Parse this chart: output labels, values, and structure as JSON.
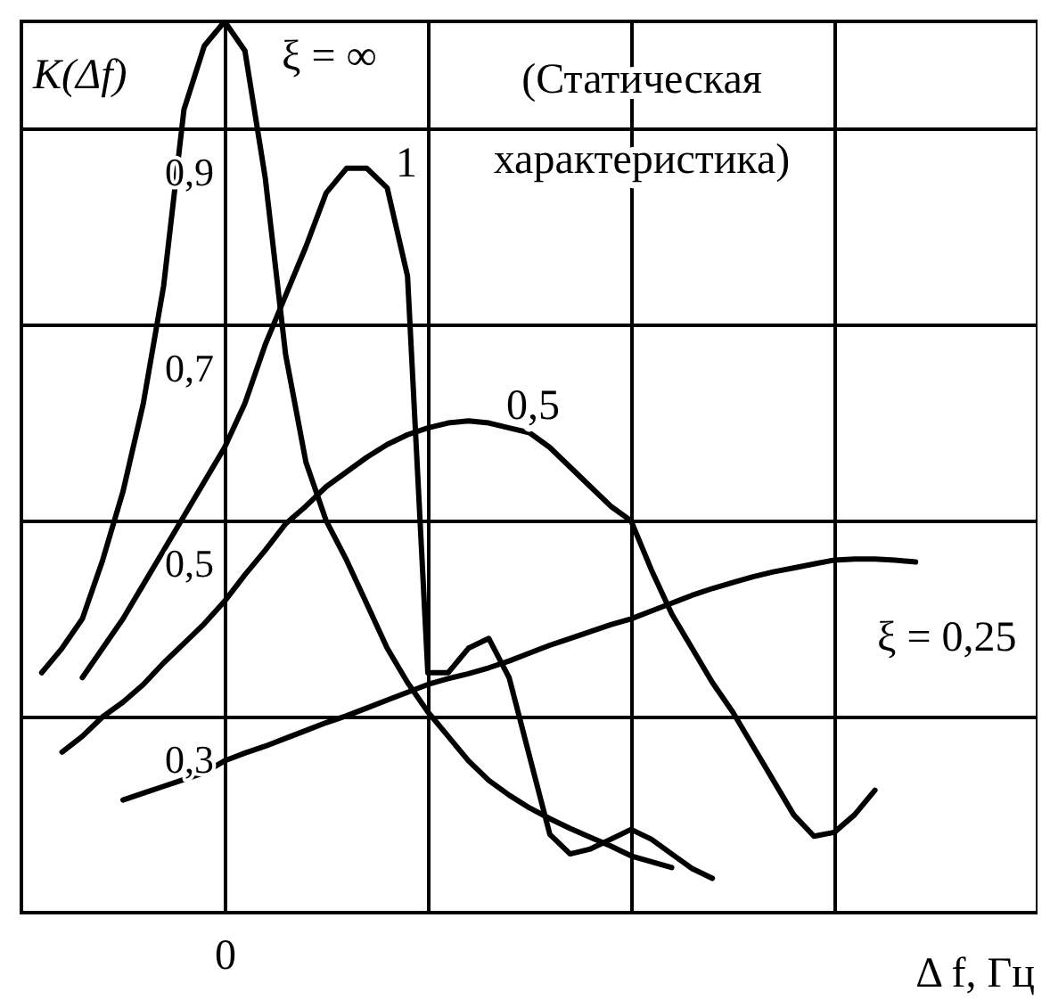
{
  "chart_data": {
    "type": "line",
    "xlabel": "Δ f, Гц",
    "ylabel": "K(Δf)",
    "annotations": [
      "(Статическая характеристика)"
    ],
    "categories": [
      null,
      null,
      null,
      null,
      null,
      null,
      null,
      null,
      null,
      null,
      "0",
      null,
      null,
      null,
      null,
      null,
      null,
      null,
      null,
      null,
      null,
      null,
      null,
      null,
      null,
      null,
      null,
      null,
      null,
      null,
      null,
      null,
      null,
      null,
      null,
      null,
      null,
      null,
      null,
      null,
      null,
      null,
      null,
      null,
      null,
      null,
      null,
      null,
      null,
      null,
      null
    ],
    "ylim": [
      0.1,
      1.01
    ],
    "yticks": [
      {
        "value": 0.3,
        "label": "0,3"
      },
      {
        "value": 0.5,
        "label": "0,5"
      },
      {
        "value": 0.7,
        "label": "0,7"
      },
      {
        "value": 0.9,
        "label": "0,9"
      }
    ],
    "grid": true,
    "legend": false,
    "line_style": "solid",
    "series": [
      {
        "name": "ξ = ∞",
        "color": "#000000",
        "values": [
          null,
          0.345,
          0.37,
          0.4,
          0.46,
          0.53,
          0.62,
          0.74,
          0.92,
          0.985,
          1.01,
          0.98,
          0.85,
          0.67,
          0.56,
          0.5,
          0.46,
          0.415,
          0.37,
          0.335,
          0.305,
          0.28,
          0.255,
          0.235,
          0.22,
          0.207,
          0.196,
          0.186,
          0.177,
          0.168,
          0.158,
          0.152,
          0.146,
          null,
          null,
          null,
          null,
          null,
          null,
          null,
          null,
          null,
          null,
          null,
          null,
          null,
          null,
          null,
          null,
          null,
          null
        ]
      },
      {
        "name": "1",
        "color": "#000000",
        "values": [
          null,
          null,
          null,
          0.34,
          0.37,
          0.4,
          0.435,
          0.47,
          0.505,
          0.54,
          0.575,
          0.62,
          0.68,
          0.73,
          0.78,
          0.835,
          0.86,
          0.86,
          0.84,
          0.75,
          0.345,
          0.345,
          0.37,
          0.38,
          0.34,
          0.26,
          0.18,
          0.16,
          0.165,
          0.175,
          0.185,
          0.175,
          0.16,
          0.145,
          0.135,
          null,
          null,
          null,
          null,
          null,
          null,
          null,
          null,
          null,
          null,
          null,
          null,
          null,
          null,
          null,
          null
        ]
      },
      {
        "name": "0,5",
        "color": "#000000",
        "values": [
          null,
          null,
          0.264,
          0.28,
          0.3,
          0.315,
          0.333,
          0.355,
          0.375,
          0.395,
          0.418,
          0.445,
          0.47,
          0.497,
          0.515,
          0.535,
          0.55,
          0.565,
          0.578,
          0.588,
          0.595,
          0.6,
          0.602,
          0.6,
          0.595,
          0.59,
          0.575,
          0.555,
          0.535,
          0.515,
          0.5,
          0.45,
          0.405,
          0.37,
          0.335,
          0.305,
          0.27,
          0.235,
          0.2,
          0.178,
          0.182,
          0.2,
          0.225,
          null,
          null,
          null,
          null,
          null,
          null,
          null,
          null
        ]
      },
      {
        "name": "ξ = 0,25",
        "color": "#000000",
        "values": [
          null,
          null,
          null,
          null,
          null,
          0.215,
          0.222,
          0.229,
          0.236,
          0.243,
          0.255,
          0.263,
          0.27,
          0.278,
          0.286,
          0.294,
          0.301,
          0.309,
          0.317,
          0.325,
          0.333,
          0.339,
          0.344,
          0.35,
          0.357,
          0.365,
          0.373,
          0.38,
          0.387,
          0.394,
          0.4,
          0.408,
          0.416,
          0.424,
          0.431,
          0.437,
          0.443,
          0.448,
          0.452,
          0.456,
          0.46,
          0.461,
          0.461,
          0.46,
          0.458,
          null,
          null,
          null,
          null,
          null,
          null
        ]
      }
    ]
  }
}
